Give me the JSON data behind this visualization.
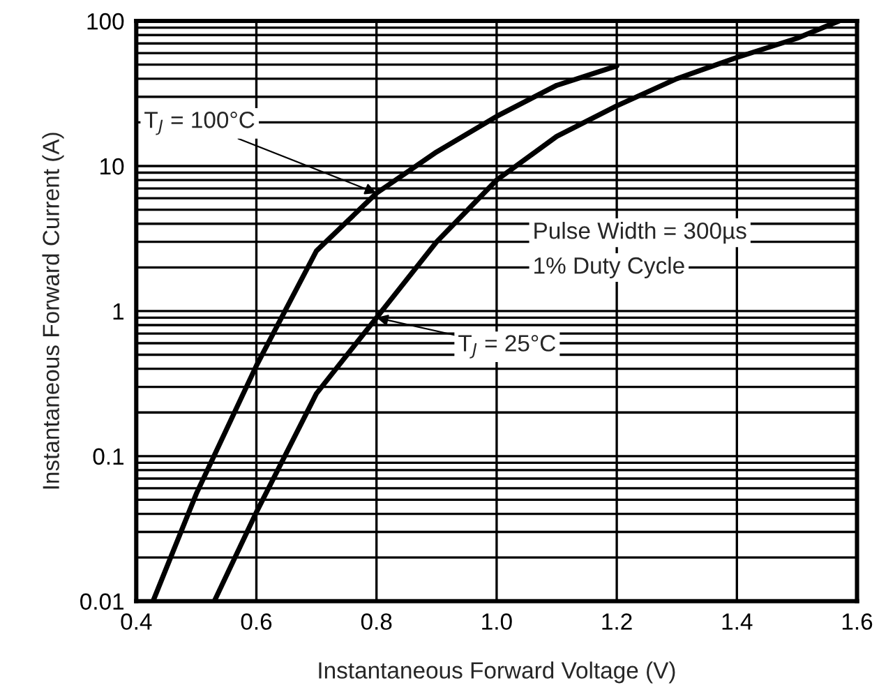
{
  "chart_data": {
    "type": "line",
    "xlabel": "Instantaneous Forward Voltage (V)",
    "ylabel": "Instantaneous Forward Current (A)",
    "log": "y",
    "grid": true,
    "marker": "none",
    "line_style": "solid",
    "xlim": [
      0.4,
      1.6
    ],
    "xticks": [
      {
        "value": 0.4,
        "label": "0.4"
      },
      {
        "value": 0.6,
        "label": "0.6"
      },
      {
        "value": 0.8,
        "label": "0.8"
      },
      {
        "value": 1.0,
        "label": "1.0"
      },
      {
        "value": 1.2,
        "label": "1.2"
      },
      {
        "value": 1.4,
        "label": "1.4"
      },
      {
        "value": 1.6,
        "label": "1.6"
      }
    ],
    "ylim": [
      0.01,
      100
    ],
    "yticks": [
      0.01,
      0.1,
      1,
      10,
      100
    ],
    "series": [
      {
        "color": "#000000",
        "x": [
          0.428,
          0.5,
          0.6,
          0.7,
          0.8,
          0.9,
          1.0,
          1.1,
          1.2
        ],
        "values": [
          0.01,
          0.055,
          0.42,
          2.6,
          6.5,
          12.5,
          22,
          36,
          49
        ]
      },
      {
        "color": "#000000",
        "x": [
          0.53,
          0.6,
          0.7,
          0.8,
          0.9,
          1.0,
          1.1,
          1.2,
          1.3,
          1.4,
          1.5,
          1.57
        ],
        "values": [
          0.01,
          0.041,
          0.27,
          0.9,
          3.0,
          8,
          16,
          26,
          40,
          56,
          76,
          100
        ]
      }
    ],
    "annotations": [
      {
        "text": "T$_{J}$ = 100°C",
        "x": 0.8,
        "y": 6.5
      },
      {
        "text": "T$_{J}$ = 25°C",
        "x": 0.8,
        "y": 0.9
      },
      "Pulse Width = 300µs",
      "1% Duty Cycle"
    ]
  }
}
